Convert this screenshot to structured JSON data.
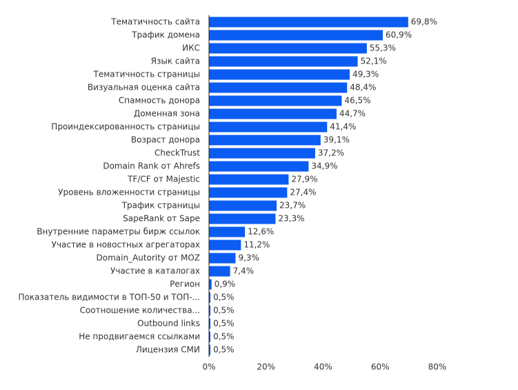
{
  "chart_data": {
    "type": "barh",
    "categories": [
      "Тематичность сайта",
      "Трафик домена",
      "ИКС",
      "Язык сайта",
      "Тематичность страницы",
      "Визуальная оценка сайта",
      "Спамность донора",
      "Доменная зона",
      "Проиндексированность страницы",
      "Возраст донора",
      "CheckTrust",
      "Domain Rank от Ahrefs",
      "TF/CF от Majestic",
      "Уровень вложенности страницы",
      "Трафик страницы",
      "SapeRank от Sape",
      "Внутренние параметры бирж ссылок",
      "Участие в новостных агрегаторах",
      "Domain_Autority от MOZ",
      "Участие в каталогах",
      "Регион",
      "Показатель видимости в ТОП-50 и ТОП-...",
      "Соотношение количества...",
      "Outbound links",
      "Не продвигаемся ссылками",
      "Лицензия СМИ"
    ],
    "values": [
      69.8,
      60.9,
      55.3,
      52.1,
      49.3,
      48.4,
      46.5,
      44.7,
      41.4,
      39.1,
      37.2,
      34.9,
      27.9,
      27.4,
      23.7,
      23.3,
      12.6,
      11.2,
      9.3,
      7.4,
      0.9,
      0.5,
      0.5,
      0.5,
      0.5,
      0.5
    ],
    "value_labels": [
      "69,8%",
      "60,9%",
      "55,3%",
      "52,1%",
      "49,3%",
      "48,4%",
      "46,5%",
      "44,7%",
      "41,4%",
      "39,1%",
      "37,2%",
      "34,9%",
      "27,9%",
      "27,4%",
      "23,7%",
      "23,3%",
      "12,6%",
      "11,2%",
      "9,3%",
      "7,4%",
      "0,9%",
      "0,5%",
      "0,5%",
      "0,5%",
      "0,5%",
      "0,5%"
    ],
    "color": "#0b5cf2",
    "xlim": [
      0,
      80
    ],
    "xticks": [
      {
        "value": 0,
        "label": "0%"
      },
      {
        "value": 20,
        "label": "20%"
      },
      {
        "value": 40,
        "label": "40%"
      },
      {
        "value": 60,
        "label": "60%"
      },
      {
        "value": 80,
        "label": "80%"
      }
    ]
  }
}
